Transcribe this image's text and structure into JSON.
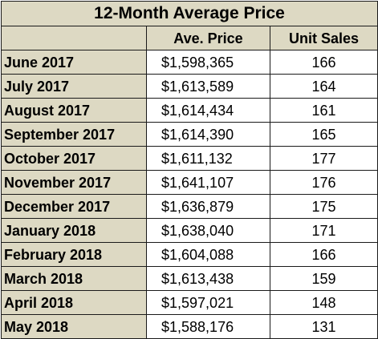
{
  "chart_data": {
    "type": "table",
    "title": "12-Month Average Price",
    "columns": [
      "",
      "Ave. Price",
      "Unit Sales"
    ],
    "rows": [
      {
        "month": "June 2017",
        "price": "$1,598,365",
        "sales": "166"
      },
      {
        "month": "July 2017",
        "price": "$1,613,589",
        "sales": "164"
      },
      {
        "month": "August 2017",
        "price": "$1,614,434",
        "sales": "161"
      },
      {
        "month": "September 2017",
        "price": "$1,614,390",
        "sales": "165"
      },
      {
        "month": "October 2017",
        "price": "$1,611,132",
        "sales": "177"
      },
      {
        "month": "November 2017",
        "price": "$1,641,107",
        "sales": "176"
      },
      {
        "month": "December 2017",
        "price": "$1,636,879",
        "sales": "175"
      },
      {
        "month": "January 2018",
        "price": "$1,638,040",
        "sales": "171"
      },
      {
        "month": "February 2018",
        "price": "$1,604,088",
        "sales": "166"
      },
      {
        "month": "March 2018",
        "price": "$1,613,438",
        "sales": "159"
      },
      {
        "month": "April 2018",
        "price": "$1,597,021",
        "sales": "148"
      },
      {
        "month": "May 2018",
        "price": "$1,588,176",
        "sales": "131"
      }
    ]
  },
  "colors": {
    "header_fill": "#ddd9c3",
    "cell_fill": "#ffffff",
    "border": "#1a1a1a"
  }
}
